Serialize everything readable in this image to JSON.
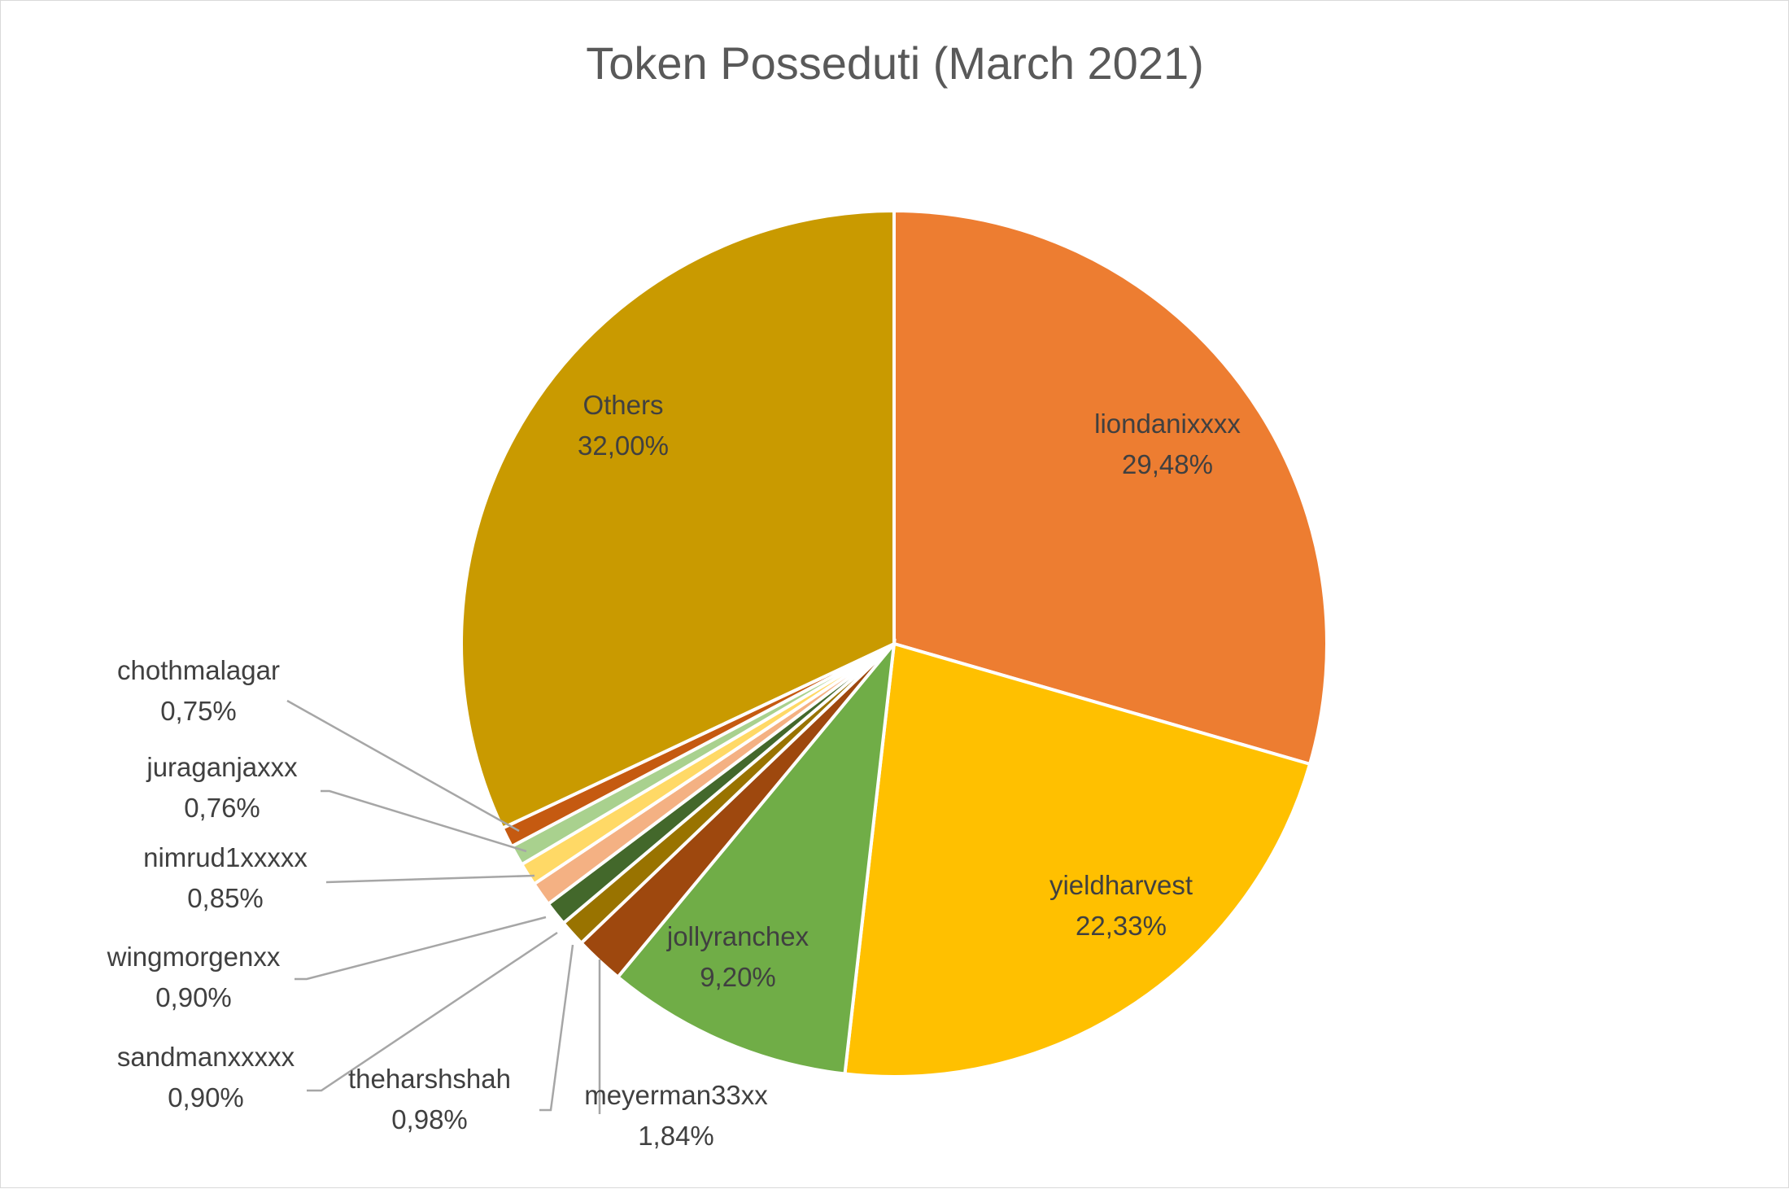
{
  "chart_data": {
    "type": "pie",
    "title": "Token Posseduti (March 2021)",
    "slices": [
      {
        "name": "liondanixxxx",
        "value": 29.48,
        "label": "29,48%",
        "color": "#ED7D31"
      },
      {
        "name": "yieldharvest",
        "value": 22.33,
        "label": "22,33%",
        "color": "#FFC000"
      },
      {
        "name": "jollyranchex",
        "value": 9.2,
        "label": "9,20%",
        "color": "#70AD47"
      },
      {
        "name": "meyerman33xx",
        "value": 1.84,
        "label": "1,84%",
        "color": "#9E480E"
      },
      {
        "name": "theharshshah",
        "value": 0.98,
        "label": "0,98%",
        "color": "#997300"
      },
      {
        "name": "sandmanxxxxx",
        "value": 0.9,
        "label": "0,90%",
        "color": "#43682B"
      },
      {
        "name": "wingmorgenxx",
        "value": 0.9,
        "label": "0,90%",
        "color": "#F4B183"
      },
      {
        "name": "nimrud1xxxxx",
        "value": 0.85,
        "label": "0,85%",
        "color": "#FFD966"
      },
      {
        "name": "juraganjaxxx",
        "value": 0.76,
        "label": "0,76%",
        "color": "#A9D18E"
      },
      {
        "name": "chothmalagar",
        "value": 0.75,
        "label": "0,75%",
        "color": "#C55A11"
      },
      {
        "name": "Others",
        "value": 32.0,
        "label": "32,00%",
        "color": "#C99A00"
      }
    ],
    "start_angle": "top",
    "direction": "clockwise",
    "legend": "none",
    "data_labels": "name and percentage"
  }
}
